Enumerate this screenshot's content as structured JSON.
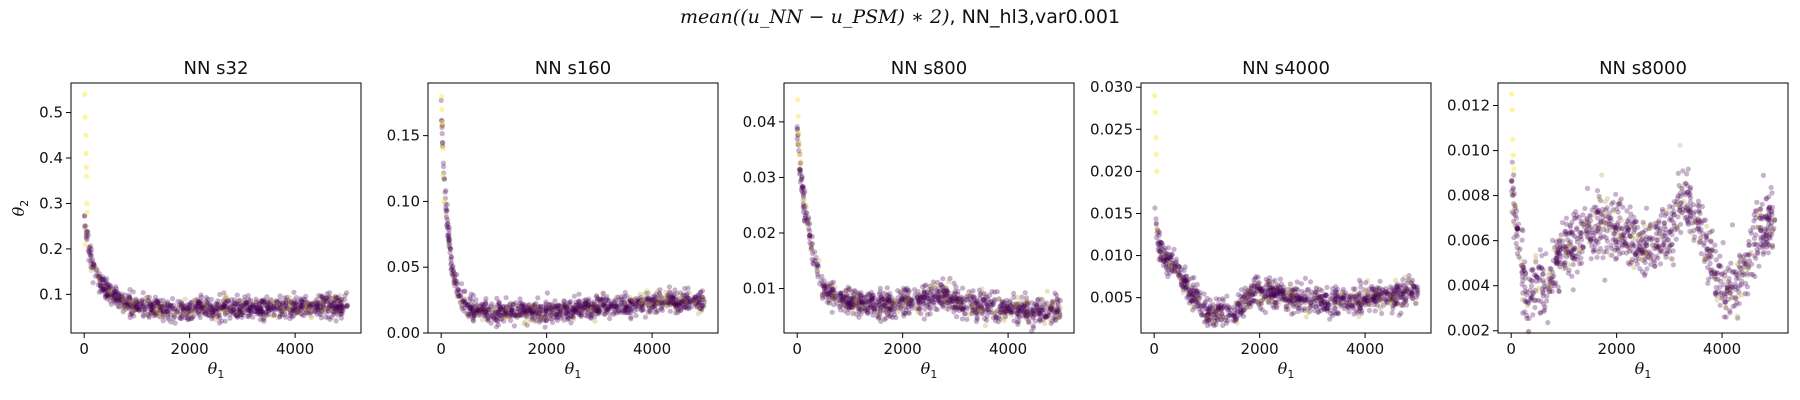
{
  "figure": {
    "suptitle_math": "mean((u_NN − u_PSM) ∗ 2)",
    "suptitle_tail": ", NN_hl3,var0.001"
  },
  "colors": {
    "point_main": "#440154",
    "point_mid": "#b5a23a",
    "point_high": "#fde725"
  },
  "chart_data": [
    {
      "type": "scatter",
      "title": "NN s32",
      "xlabel": "θ1",
      "ylabel": "θ2",
      "xlim": [
        -250,
        5250
      ],
      "ylim": [
        0.015,
        0.565
      ],
      "xticks": [
        0,
        2000,
        4000
      ],
      "xtick_labels": [
        "0",
        "2000",
        "4000"
      ],
      "yticks": [
        0.1,
        0.2,
        0.3,
        0.4,
        0.5
      ],
      "ytick_labels": [
        "0.1",
        "0.2",
        "0.3",
        "0.4",
        "0.5"
      ],
      "curve": [
        [
          0,
          0.27
        ],
        [
          50,
          0.22
        ],
        [
          150,
          0.17
        ],
        [
          300,
          0.13
        ],
        [
          500,
          0.1
        ],
        [
          800,
          0.08
        ],
        [
          1200,
          0.07
        ],
        [
          1800,
          0.065
        ],
        [
          2500,
          0.07
        ],
        [
          3500,
          0.07
        ],
        [
          4500,
          0.075
        ],
        [
          5000,
          0.075
        ]
      ],
      "spread": 0.012,
      "highlights": [
        [
          10,
          0.54
        ],
        [
          20,
          0.49
        ],
        [
          30,
          0.45
        ],
        [
          35,
          0.41
        ],
        [
          40,
          0.38
        ],
        [
          45,
          0.36
        ],
        [
          50,
          0.3
        ],
        [
          55,
          0.28
        ],
        [
          20,
          0.21
        ]
      ]
    },
    {
      "type": "scatter",
      "title": "NN s160",
      "xlabel": "θ1",
      "ylabel": "",
      "xlim": [
        -250,
        5250
      ],
      "ylim": [
        0,
        0.19
      ],
      "xticks": [
        0,
        2000,
        4000
      ],
      "xtick_labels": [
        "0",
        "2000",
        "4000"
      ],
      "yticks": [
        0.0,
        0.05,
        0.1,
        0.15
      ],
      "ytick_labels": [
        "0.00",
        "0.05",
        "0.10",
        "0.15"
      ],
      "curve": [
        [
          0,
          0.175
        ],
        [
          40,
          0.13
        ],
        [
          100,
          0.09
        ],
        [
          200,
          0.05
        ],
        [
          350,
          0.025
        ],
        [
          600,
          0.017
        ],
        [
          1000,
          0.016
        ],
        [
          1500,
          0.016
        ],
        [
          2000,
          0.017
        ],
        [
          2500,
          0.018
        ],
        [
          3000,
          0.02
        ],
        [
          3500,
          0.021
        ],
        [
          4000,
          0.023
        ],
        [
          4500,
          0.024
        ],
        [
          5000,
          0.023
        ]
      ],
      "spread": 0.004,
      "highlights": [
        [
          10,
          0.18
        ],
        [
          20,
          0.16
        ],
        [
          30,
          0.14
        ],
        [
          40,
          0.12
        ],
        [
          50,
          0.1
        ],
        [
          15,
          0.17
        ]
      ]
    },
    {
      "type": "scatter",
      "title": "NN s800",
      "xlabel": "θ1",
      "ylabel": "",
      "xlim": [
        -250,
        5250
      ],
      "ylim": [
        0.002,
        0.047
      ],
      "xticks": [
        0,
        2000,
        4000
      ],
      "xtick_labels": [
        "0",
        "2000",
        "4000"
      ],
      "yticks": [
        0.01,
        0.02,
        0.03,
        0.04
      ],
      "ytick_labels": [
        "0.01",
        "0.02",
        "0.03",
        "0.04"
      ],
      "curve": [
        [
          0,
          0.04
        ],
        [
          50,
          0.032
        ],
        [
          150,
          0.024
        ],
        [
          300,
          0.016
        ],
        [
          500,
          0.01
        ],
        [
          800,
          0.008
        ],
        [
          1200,
          0.0075
        ],
        [
          1800,
          0.007
        ],
        [
          2200,
          0.0075
        ],
        [
          2800,
          0.0085
        ],
        [
          3300,
          0.007
        ],
        [
          4000,
          0.0065
        ],
        [
          4500,
          0.006
        ],
        [
          5000,
          0.0065
        ]
      ],
      "spread": 0.0012,
      "highlights": [
        [
          10,
          0.044
        ],
        [
          20,
          0.041
        ],
        [
          30,
          0.038
        ],
        [
          40,
          0.036
        ],
        [
          50,
          0.034
        ]
      ]
    },
    {
      "type": "scatter",
      "title": "NN s4000",
      "xlabel": "θ1",
      "ylabel": "",
      "xlim": [
        -250,
        5250
      ],
      "ylim": [
        0.0008,
        0.0305
      ],
      "xticks": [
        0,
        2000,
        4000
      ],
      "xtick_labels": [
        "0",
        "2000",
        "4000"
      ],
      "yticks": [
        0.005,
        0.01,
        0.015,
        0.02,
        0.025,
        0.03
      ],
      "ytick_labels": [
        "0.005",
        "0.010",
        "0.015",
        "0.020",
        "0.025",
        "0.030"
      ],
      "curve": [
        [
          0,
          0.018
        ],
        [
          50,
          0.012
        ],
        [
          150,
          0.01
        ],
        [
          400,
          0.009
        ],
        [
          700,
          0.0055
        ],
        [
          1000,
          0.0035
        ],
        [
          1500,
          0.0032
        ],
        [
          1900,
          0.0058
        ],
        [
          2300,
          0.0055
        ],
        [
          2800,
          0.0048
        ],
        [
          3500,
          0.0045
        ],
        [
          4000,
          0.0048
        ],
        [
          4500,
          0.005
        ],
        [
          5000,
          0.0058
        ]
      ],
      "spread": 0.0008,
      "highlights": [
        [
          10,
          0.029
        ],
        [
          20,
          0.027
        ],
        [
          30,
          0.024
        ],
        [
          40,
          0.022
        ],
        [
          50,
          0.02
        ]
      ]
    },
    {
      "type": "scatter",
      "title": "NN s8000",
      "xlabel": "θ1",
      "ylabel": "",
      "xlim": [
        -250,
        5250
      ],
      "ylim": [
        0.0019,
        0.013
      ],
      "xticks": [
        0,
        2000,
        4000
      ],
      "xtick_labels": [
        "0",
        "2000",
        "4000"
      ],
      "yticks": [
        0.002,
        0.004,
        0.006,
        0.008,
        0.01,
        0.012
      ],
      "ytick_labels": [
        "0.002",
        "0.004",
        "0.006",
        "0.008",
        "0.010",
        "0.012"
      ],
      "curve": [
        [
          0,
          0.009
        ],
        [
          100,
          0.0065
        ],
        [
          200,
          0.0048
        ],
        [
          350,
          0.0032
        ],
        [
          500,
          0.0045
        ],
        [
          700,
          0.0036
        ],
        [
          900,
          0.0055
        ],
        [
          1200,
          0.0058
        ],
        [
          1600,
          0.0068
        ],
        [
          1900,
          0.0065
        ],
        [
          2200,
          0.0062
        ],
        [
          2600,
          0.0058
        ],
        [
          3000,
          0.0063
        ],
        [
          3300,
          0.0082
        ],
        [
          3600,
          0.0065
        ],
        [
          3900,
          0.0042
        ],
        [
          4100,
          0.0038
        ],
        [
          4400,
          0.0045
        ],
        [
          4700,
          0.0065
        ],
        [
          5000,
          0.0068
        ]
      ],
      "spread": 0.0007,
      "highlights": [
        [
          10,
          0.0125
        ],
        [
          20,
          0.0118
        ],
        [
          30,
          0.0105
        ],
        [
          40,
          0.0098
        ],
        [
          50,
          0.0092
        ]
      ]
    }
  ]
}
